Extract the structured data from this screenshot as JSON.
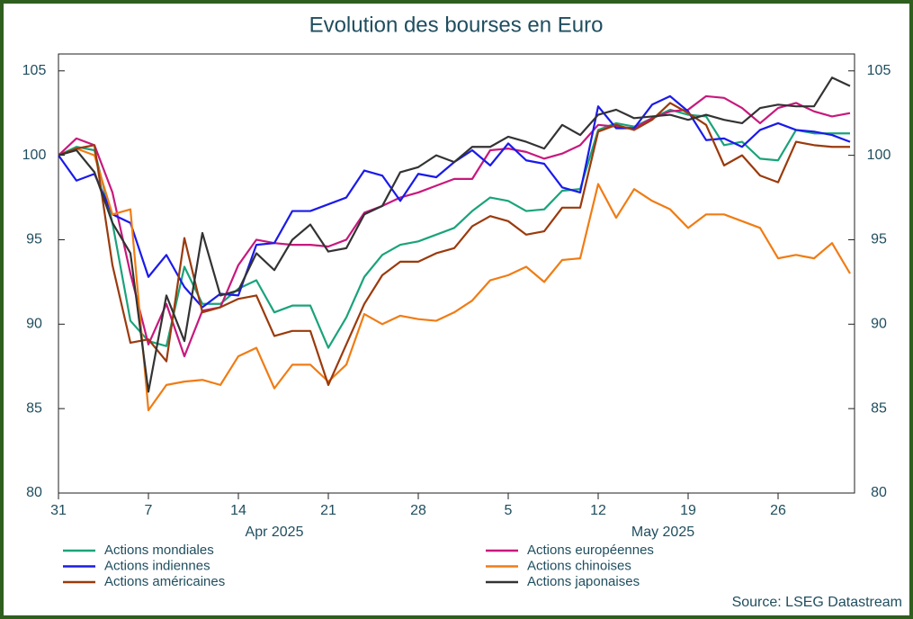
{
  "chart_data": {
    "type": "line",
    "title": "Evolution des bourses en Euro",
    "categories": [
      "31",
      null,
      null,
      null,
      null,
      "7",
      null,
      null,
      null,
      null,
      "14",
      null,
      null,
      null,
      null,
      "21",
      null,
      null,
      null,
      null,
      "28",
      null,
      null,
      null,
      null,
      "5",
      null,
      null,
      null,
      null,
      "12",
      null,
      null,
      null,
      null,
      "19",
      null,
      null,
      null,
      null,
      "26",
      null,
      null,
      null,
      null
    ],
    "month_labels": [
      "Apr 2025",
      "May 2025"
    ],
    "ylim": [
      80,
      106
    ],
    "yticks": [
      80,
      85,
      90,
      95,
      100,
      105
    ],
    "y2lim": [
      80,
      106
    ],
    "y2ticks": [
      80,
      85,
      90,
      95,
      100,
      105
    ],
    "grid": false,
    "legend": "bottom",
    "source": "Source: LSEG Datastream",
    "series": [
      {
        "name": "Actions mondiales",
        "color": "#1aa37a",
        "values": [
          100,
          100.5,
          100.3,
          96,
          90.2,
          89,
          88.7,
          93.4,
          91.2,
          91.2,
          92.1,
          92.6,
          90.7,
          91.1,
          91.1,
          88.6,
          90.4,
          92.8,
          94.1,
          94.7,
          94.9,
          95.3,
          95.7,
          96.7,
          97.5,
          97.3,
          96.7,
          96.8,
          97.9,
          98,
          101.5,
          101.9,
          101.7,
          102.2,
          102.7,
          102.4,
          102.3,
          100.6,
          100.8,
          99.8,
          99.7,
          101.5,
          101.3,
          101.3,
          101.3
        ]
      },
      {
        "name": "Actions européennes",
        "color": "#c8187d",
        "values": [
          100,
          101,
          100.6,
          97.8,
          93,
          88.8,
          91.2,
          88.1,
          90.8,
          91,
          93.5,
          95,
          94.8,
          94.7,
          94.7,
          94.6,
          95,
          96.6,
          97,
          97.5,
          97.8,
          98.2,
          98.6,
          98.6,
          100.3,
          100.4,
          100.2,
          99.8,
          100.1,
          100.6,
          101.8,
          101.7,
          101.6,
          102.2,
          102.6,
          102.7,
          103.5,
          103.4,
          102.8,
          101.9,
          102.8,
          103.1,
          102.6,
          102.3,
          102.5
        ]
      },
      {
        "name": "Actions indiennes",
        "color": "#1a1aeb",
        "values": [
          100,
          98.5,
          98.9,
          96.5,
          96,
          92.8,
          94.1,
          92.2,
          91,
          91.8,
          91.7,
          94.7,
          94.8,
          96.7,
          96.7,
          97.1,
          97.5,
          99.1,
          98.8,
          97.3,
          98.9,
          98.7,
          99.6,
          100.3,
          99.4,
          100.7,
          99.7,
          99.5,
          98.1,
          97.8,
          102.9,
          101.6,
          101.6,
          103,
          103.5,
          102.6,
          100.9,
          101,
          100.5,
          101.5,
          101.9,
          101.5,
          101.4,
          101.2,
          100.8
        ]
      },
      {
        "name": "Actions chinoises",
        "color": "#f07c14",
        "values": [
          100,
          100.4,
          100,
          96.5,
          96.8,
          84.9,
          86.4,
          86.6,
          86.7,
          86.4,
          88.1,
          88.6,
          86.2,
          87.6,
          87.6,
          86.6,
          87.6,
          90.6,
          90,
          90.5,
          90.3,
          90.2,
          90.7,
          91.4,
          92.6,
          92.9,
          93.4,
          92.5,
          93.8,
          93.9,
          98.3,
          96.3,
          98,
          97.3,
          96.8,
          95.7,
          96.5,
          96.5,
          96.1,
          95.7,
          93.9,
          94.1,
          93.9,
          94.8,
          93
        ]
      },
      {
        "name": "Actions américaines",
        "color": "#9b3a0c",
        "values": [
          100,
          100.4,
          100.6,
          93.5,
          88.9,
          89.1,
          87.8,
          95.1,
          90.7,
          91,
          91.5,
          91.7,
          89.3,
          89.6,
          89.6,
          86.4,
          88.8,
          91.2,
          92.9,
          93.7,
          93.7,
          94.2,
          94.5,
          95.8,
          96.4,
          96.1,
          95.3,
          95.5,
          96.9,
          96.9,
          101.4,
          101.8,
          101.5,
          102.1,
          103.1,
          102.5,
          101.8,
          99.4,
          100,
          98.8,
          98.4,
          100.8,
          100.6,
          100.5,
          100.5
        ]
      },
      {
        "name": "Actions japonaises",
        "color": "#333333",
        "values": [
          100,
          100.3,
          99,
          96,
          94.2,
          86,
          91.7,
          89,
          95.4,
          91.7,
          92,
          94.2,
          93.2,
          95,
          95.9,
          94.3,
          94.5,
          96.5,
          97,
          99,
          99.3,
          100,
          99.6,
          100.5,
          100.5,
          101.1,
          100.8,
          100.4,
          101.8,
          101.2,
          102.4,
          102.7,
          102.2,
          102.3,
          102.4,
          102.1,
          102.4,
          102.1,
          101.9,
          102.8,
          103,
          102.9,
          102.9,
          104.6,
          104.1
        ]
      }
    ]
  }
}
